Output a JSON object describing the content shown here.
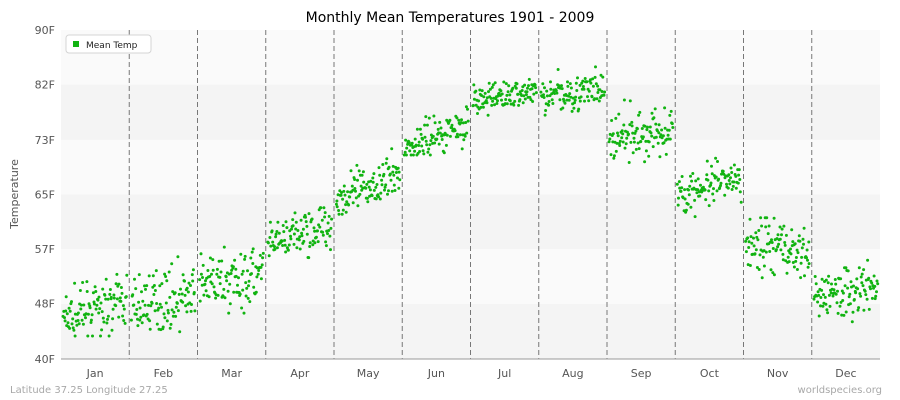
{
  "chart_data": {
    "type": "scatter",
    "title": "Monthly Mean Temperatures 1901 - 2009",
    "xlabel": "",
    "ylabel": "Temperature",
    "ylim": [
      40,
      90
    ],
    "y_ticks": [
      {
        "value": 40,
        "label": "40F"
      },
      {
        "value": 48.4,
        "label": "48F"
      },
      {
        "value": 56.7,
        "label": "57F"
      },
      {
        "value": 65,
        "label": "65F"
      },
      {
        "value": 73.3,
        "label": "73F"
      },
      {
        "value": 81.7,
        "label": "82F"
      },
      {
        "value": 90,
        "label": "90F"
      }
    ],
    "categories": [
      "Jan",
      "Feb",
      "Mar",
      "Apr",
      "May",
      "Jun",
      "Jul",
      "Aug",
      "Sep",
      "Oct",
      "Nov",
      "Dec"
    ],
    "series": [
      {
        "name": "Mean Temp",
        "color": "#11b311",
        "points_per_month": 109,
        "monthly_values": {
          "Jan": {
            "start_mean": 46,
            "end_mean": 49,
            "min": 43.5,
            "max": 54.5
          },
          "Feb": {
            "start_mean": 48,
            "end_mean": 50,
            "min": 43,
            "max": 56
          },
          "Mar": {
            "start_mean": 51,
            "end_mean": 53,
            "min": 45,
            "max": 58
          },
          "Apr": {
            "start_mean": 57,
            "end_mean": 61,
            "min": 53,
            "max": 63
          },
          "May": {
            "start_mean": 64,
            "end_mean": 68,
            "min": 62,
            "max": 73
          },
          "Jun": {
            "start_mean": 72,
            "end_mean": 76,
            "min": 71,
            "max": 79
          },
          "Jul": {
            "start_mean": 79,
            "end_mean": 81,
            "min": 77,
            "max": 84
          },
          "Aug": {
            "start_mean": 80,
            "end_mean": 81,
            "min": 77,
            "max": 85
          },
          "Sep": {
            "start_mean": 73,
            "end_mean": 75,
            "min": 69,
            "max": 80
          },
          "Oct": {
            "start_mean": 65,
            "end_mean": 67,
            "min": 61,
            "max": 70.5
          },
          "Nov": {
            "start_mean": 58,
            "end_mean": 56,
            "min": 51,
            "max": 63
          },
          "Dec": {
            "start_mean": 50,
            "end_mean": 51,
            "min": 44,
            "max": 56
          }
        }
      }
    ],
    "legend": {
      "label": "Mean Temp",
      "position": "top-left"
    },
    "grid": true
  },
  "footer": {
    "location": "Latitude 37.25 Longitude 27.25",
    "site": "worldspecies.org"
  }
}
